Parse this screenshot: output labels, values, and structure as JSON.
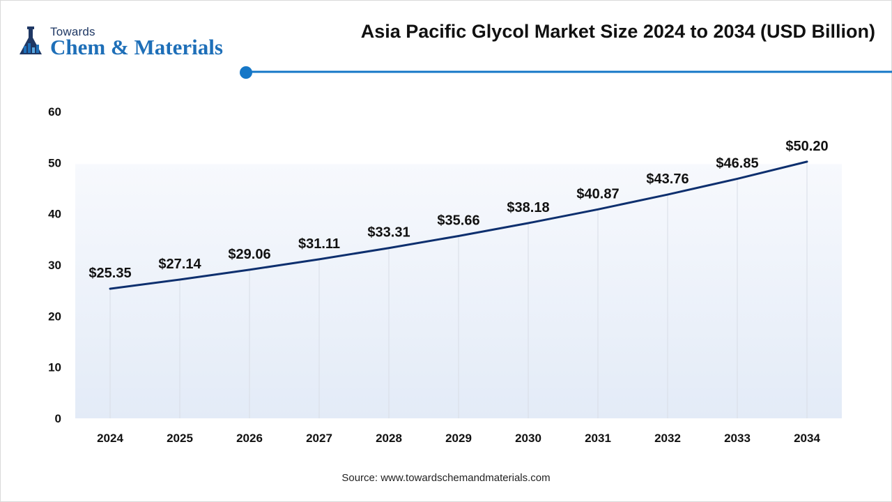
{
  "header": {
    "logo_small": "Towards",
    "logo_big": "Chem & Materials",
    "logo_icon": "flask-icon",
    "title": "Asia Pacific Glycol Market Size 2024 to 2034 (USD Billion)"
  },
  "footer": {
    "source": "Source: www.towardschemandmaterials.com"
  },
  "colors": {
    "line": "#0d2f6e",
    "accent": "#1577c7",
    "area_top": "#f7f9fd",
    "area_bottom": "#e3ebf7",
    "grid": "#d8dde6"
  },
  "chart_data": {
    "type": "line",
    "title": "Asia Pacific Glycol Market Size 2024 to 2034 (USD Billion)",
    "xlabel": "",
    "ylabel": "",
    "ylim": [
      0,
      60
    ],
    "y_ticks": [
      0,
      10,
      20,
      30,
      40,
      50,
      60
    ],
    "grid": "vertical",
    "legend": "none",
    "categories": [
      "2024",
      "2025",
      "2026",
      "2027",
      "2028",
      "2029",
      "2030",
      "2031",
      "2032",
      "2033",
      "2034"
    ],
    "values": [
      25.35,
      27.14,
      29.06,
      31.11,
      33.31,
      35.66,
      38.18,
      40.87,
      43.76,
      46.85,
      50.2
    ],
    "data_labels": [
      "$25.35",
      "$27.14",
      "$29.06",
      "$31.11",
      "$33.31",
      "$35.66",
      "$38.18",
      "$40.87",
      "$43.76",
      "$46.85",
      "$50.20"
    ]
  }
}
